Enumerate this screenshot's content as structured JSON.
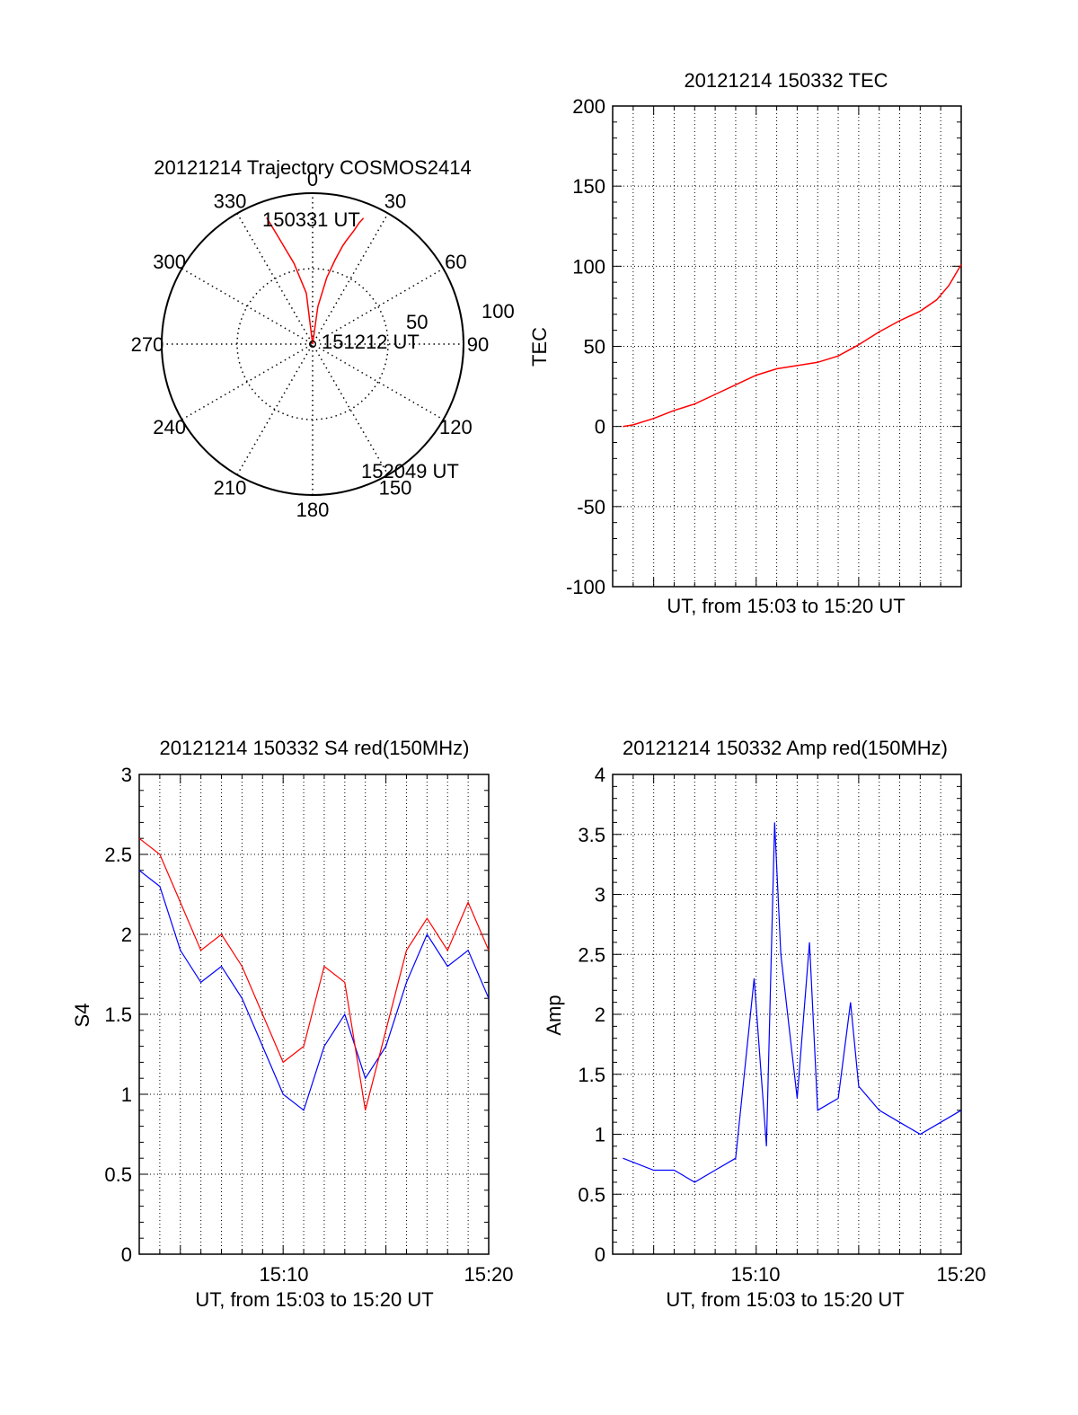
{
  "chart_data": [
    {
      "type": "polar",
      "title": "20121214 Trajectory COSMOS2414",
      "angle_labels": [
        "0",
        "30",
        "60",
        "90",
        "120",
        "150",
        "180",
        "210",
        "240",
        "270",
        "300",
        "330"
      ],
      "radius_labels": [
        "50",
        "100"
      ],
      "annotations": [
        "150331 UT",
        "151212 UT",
        "152049 UT"
      ],
      "series": [
        {
          "color": "#ff0000",
          "points": [
            [
              -20,
              89
            ],
            [
              -18,
              76
            ],
            [
              -13,
              55
            ],
            [
              -7,
              34
            ],
            [
              0,
              0
            ],
            [
              8,
              25
            ],
            [
              12,
              45
            ],
            [
              15,
              58
            ],
            [
              17,
              68
            ],
            [
              18,
              72
            ],
            [
              20,
              80
            ],
            [
              21,
              86
            ],
            [
              22,
              90
            ]
          ]
        }
      ],
      "grid": true
    },
    {
      "type": "line",
      "title": "20121214 150332 TEC",
      "xlabel": "UT, from 15:03 to 15:20 UT",
      "ylabel": "TEC",
      "ylim": [
        -100,
        200
      ],
      "yticks": [
        "-100",
        "-50",
        "0",
        "50",
        "100",
        "150",
        "200"
      ],
      "xlim": [
        3.0,
        20.0
      ],
      "grid": true,
      "series": [
        {
          "color": "#ff0000",
          "x": [
            3.5,
            4.0,
            5.0,
            6.0,
            7.0,
            8.0,
            9.0,
            10.0,
            11.0,
            12.0,
            13.0,
            14.0,
            15.0,
            16.0,
            17.0,
            18.0,
            18.8,
            19.4,
            20.0
          ],
          "y": [
            0,
            1,
            5,
            10,
            14,
            20,
            26,
            32,
            36,
            38,
            40,
            44,
            51,
            59,
            66,
            72,
            79,
            88,
            101
          ]
        }
      ]
    },
    {
      "type": "line",
      "title": "20121214 150332 S4 red(150MHz)",
      "xlabel": "UT, from 15:03 to 15:20 UT",
      "ylabel": "S4",
      "ylim": [
        0,
        3
      ],
      "yticks": [
        "0",
        "0.5",
        "1",
        "1.5",
        "2",
        "2.5",
        "3"
      ],
      "xticks": [
        "15:10",
        "15:20"
      ],
      "xlim": [
        3.0,
        20.0
      ],
      "grid": true,
      "series": [
        {
          "color": "#0000ff",
          "x": [
            3.0,
            4.0,
            5.0,
            6.0,
            7.0,
            8.0,
            9.0,
            10.0,
            11.0,
            12.0,
            13.0,
            14.0,
            15.0,
            16.0,
            17.0,
            18.0,
            19.0,
            20.0
          ],
          "y": [
            2.4,
            2.3,
            1.9,
            1.7,
            1.8,
            1.6,
            1.3,
            1.0,
            0.9,
            1.3,
            1.5,
            1.1,
            1.3,
            1.7,
            2.0,
            1.8,
            1.9,
            1.6
          ]
        },
        {
          "color": "#ff0000",
          "x": [
            3.0,
            4.0,
            5.0,
            6.0,
            7.0,
            8.0,
            9.0,
            10.0,
            11.0,
            12.0,
            13.0,
            14.0,
            15.0,
            16.0,
            17.0,
            18.0,
            19.0,
            20.0
          ],
          "y": [
            2.6,
            2.5,
            2.2,
            1.9,
            2.0,
            1.8,
            1.5,
            1.2,
            1.3,
            1.8,
            1.7,
            0.9,
            1.4,
            1.9,
            2.1,
            1.9,
            2.2,
            1.9
          ]
        }
      ]
    },
    {
      "type": "line",
      "title": "20121214 150332 Amp red(150MHz)",
      "xlabel": "UT, from 15:03 to 15:20 UT",
      "ylabel": "Amp",
      "ylim": [
        0,
        4
      ],
      "yticks": [
        "0",
        "0.5",
        "1",
        "1.5",
        "2",
        "2.5",
        "3",
        "3.5",
        "4"
      ],
      "xticks": [
        "15:10",
        "15:20"
      ],
      "xlim": [
        3.0,
        20.0
      ],
      "grid": true,
      "series": [
        {
          "color": "#0000ff",
          "x": [
            3.5,
            5.0,
            6.0,
            7.0,
            8.0,
            9.0,
            9.9,
            10.2,
            10.5,
            10.9,
            11.2,
            12.0,
            12.6,
            13.0,
            14.0,
            14.6,
            15.0,
            16.0,
            17.0,
            18.0,
            19.0,
            20.0
          ],
          "y": [
            0.8,
            0.7,
            0.7,
            0.6,
            0.7,
            0.8,
            2.3,
            1.6,
            0.9,
            3.6,
            2.5,
            1.3,
            2.6,
            1.2,
            1.3,
            2.1,
            1.4,
            1.2,
            1.1,
            1.0,
            1.1,
            1.2
          ]
        }
      ]
    }
  ]
}
